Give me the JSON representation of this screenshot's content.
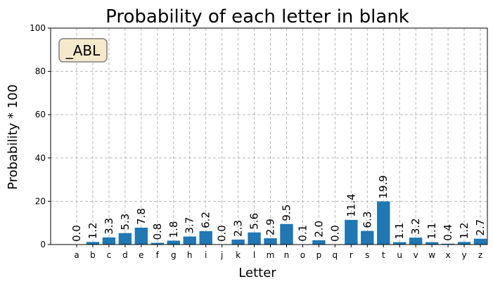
{
  "chart_data": {
    "type": "bar",
    "title": "Probability of each letter in blank",
    "xlabel": "Letter",
    "ylabel": "Probability * 100",
    "ylim": [
      0,
      100
    ],
    "yticks": [
      0,
      20,
      40,
      60,
      80,
      100
    ],
    "grid": true,
    "annotation": "_ABL",
    "bar_color": "#1f77b4",
    "annotation_bg": "#f5e9cc",
    "annotation_border": "#808080",
    "categories": [
      "a",
      "b",
      "c",
      "d",
      "e",
      "f",
      "g",
      "h",
      "i",
      "j",
      "k",
      "l",
      "m",
      "n",
      "o",
      "p",
      "q",
      "r",
      "s",
      "t",
      "u",
      "v",
      "w",
      "x",
      "y",
      "z"
    ],
    "values": [
      0.0,
      1.2,
      3.3,
      5.3,
      7.8,
      0.8,
      1.8,
      3.7,
      6.2,
      0.0,
      2.3,
      5.6,
      2.9,
      9.5,
      0.1,
      2.0,
      0.0,
      11.4,
      6.3,
      19.9,
      1.1,
      3.2,
      1.1,
      0.4,
      1.2,
      2.7
    ]
  }
}
